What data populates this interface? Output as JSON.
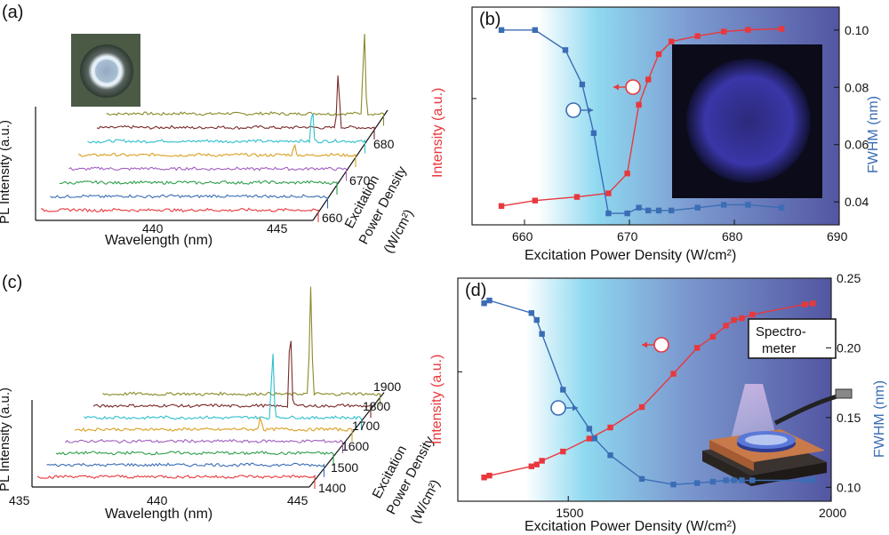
{
  "panels": {
    "a": {
      "tag": "(a)"
    },
    "b": {
      "tag": "(b)"
    },
    "c": {
      "tag": "(c)"
    },
    "d": {
      "tag": "(d)"
    }
  },
  "colors": {
    "intensity": "#e8383d",
    "fwhm": "#3b6db5",
    "gradient_left": "#ffffff",
    "gradient_mid": "#7fd4ee",
    "gradient_right": "#5b5ea6",
    "spectra": [
      "#e8383d",
      "#3b6db5",
      "#2e9f4a",
      "#a25fc0",
      "#d9a020",
      "#2fbfcf",
      "#7a2a2a",
      "#8a8a2a"
    ]
  },
  "chart_data": [
    {
      "id": "a",
      "type": "line",
      "subtype": "waterfall-3d",
      "ylabel": "PL Intensity (a.u.)",
      "xlabel": "Wavelength (nm)",
      "zlabel": [
        "Excitation",
        "Power Density",
        "(W/cm²)"
      ],
      "x_ticks": [
        "440",
        "445"
      ],
      "z_ticks": [
        "660",
        "670",
        "680"
      ],
      "series_count": 8,
      "peak_positions_nm": [
        null,
        null,
        null,
        null,
        444.1,
        444.4,
        445.0,
        445.6
      ],
      "peak_heights": [
        0,
        0,
        0,
        0,
        0.1,
        0.35,
        0.55,
        0.85
      ],
      "inset": "micro-disk optical image"
    },
    {
      "id": "b",
      "type": "line",
      "xlabel": "Excitation Power Density (W/cm²)",
      "ylabel_left": "Intensity (a.u.)",
      "ylabel_right": "FWHM (nm)",
      "xlim": [
        655,
        690
      ],
      "x_ticks": [
        "660",
        "670",
        "680",
        "690"
      ],
      "y2lim": [
        0.032,
        0.108
      ],
      "y2_ticks": [
        "0.04",
        "0.06",
        "0.08",
        "0.10"
      ],
      "series": [
        {
          "name": "Intensity",
          "x": [
            657.8,
            661.0,
            665.0,
            668.0,
            669.8,
            670.9,
            671.8,
            672.8,
            674.0,
            676.5,
            679.0,
            681.3,
            684.5
          ],
          "values": [
            0.02,
            0.05,
            0.07,
            0.09,
            0.2,
            0.58,
            0.72,
            0.86,
            0.93,
            0.96,
            0.985,
            0.995,
            1.0
          ]
        },
        {
          "name": "FWHM",
          "x": [
            657.8,
            661.0,
            663.9,
            665.5,
            666.6,
            668.0,
            669.8,
            670.9,
            671.8,
            672.8,
            674.0,
            676.5,
            679.0,
            681.3,
            684.5
          ],
          "values": [
            0.1,
            0.1,
            0.093,
            0.081,
            0.064,
            0.036,
            0.036,
            0.038,
            0.037,
            0.037,
            0.037,
            0.038,
            0.039,
            0.039,
            0.038
          ]
        }
      ],
      "inset": "blue emission disk image"
    },
    {
      "id": "c",
      "type": "line",
      "subtype": "waterfall-3d",
      "ylabel": "PL Intensity (a.u.)",
      "xlabel": "Wavelength (nm)",
      "zlabel": [
        "Excitation",
        "Power Density",
        "(W/cm²)"
      ],
      "x_ticks": [
        "435",
        "440",
        "445"
      ],
      "z_ticks": [
        "1400",
        "1500",
        "1600",
        "1700",
        "1800",
        "1900"
      ],
      "series_count": 8,
      "peak_positions_nm": [
        null,
        null,
        null,
        null,
        442.0,
        442.1,
        442.4,
        442.8
      ],
      "peak_heights": [
        0,
        0,
        0,
        0.05,
        0.12,
        0.6,
        0.72,
        0.85
      ]
    },
    {
      "id": "d",
      "type": "line",
      "xlabel": "Excitation Power Density (W/cm²)",
      "ylabel_left": "Intensity (a.u.)",
      "ylabel_right": "FWHM (nm)",
      "xlim": [
        1290,
        2000
      ],
      "x_ticks": [
        "1500",
        "2000"
      ],
      "y2lim": [
        0.09,
        0.25
      ],
      "y2_ticks": [
        "0.10",
        "0.15",
        "0.20",
        "0.25"
      ],
      "series": [
        {
          "name": "Intensity",
          "x": [
            1340,
            1350,
            1430,
            1440,
            1450,
            1490,
            1540,
            1580,
            1640,
            1700,
            1745,
            1775,
            1800,
            1815,
            1830,
            1850,
            1950,
            1965
          ],
          "values": [
            0.02,
            0.03,
            0.08,
            0.09,
            0.11,
            0.16,
            0.23,
            0.29,
            0.4,
            0.58,
            0.72,
            0.78,
            0.84,
            0.87,
            0.88,
            0.9,
            0.955,
            0.96
          ]
        },
        {
          "name": "FWHM",
          "x": [
            1340,
            1350,
            1430,
            1440,
            1450,
            1490,
            1540,
            1550,
            1580,
            1640,
            1700,
            1745,
            1775,
            1800,
            1815,
            1830,
            1850,
            1950,
            1965
          ],
          "values": [
            0.232,
            0.234,
            0.225,
            0.22,
            0.21,
            0.17,
            0.142,
            0.135,
            0.123,
            0.106,
            0.102,
            0.103,
            0.104,
            0.105,
            0.105,
            0.105,
            0.105,
            0.105,
            0.105
          ]
        }
      ],
      "inset_label": "Spectro-\nmeter",
      "inset": "micro-disk on substrate under excitation beam, fiber to spectrometer"
    }
  ]
}
